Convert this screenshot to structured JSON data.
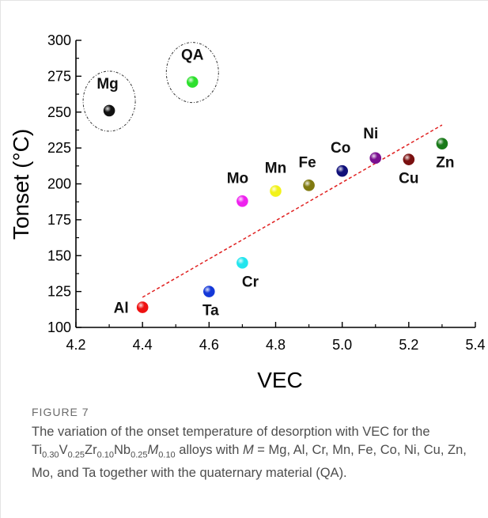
{
  "chart_data": {
    "type": "scatter",
    "xlabel": "VEC",
    "ylabel": "Tonset (°C)",
    "xlim": [
      4.2,
      5.4
    ],
    "ylim": [
      100,
      300
    ],
    "xticks": [
      "4.2",
      "4.4",
      "4.6",
      "4.8",
      "5.0",
      "5.2",
      "5.4"
    ],
    "yticks": [
      "100",
      "125",
      "150",
      "175",
      "200",
      "225",
      "250",
      "275",
      "300"
    ],
    "grid": false,
    "points": [
      {
        "label": "Mg",
        "x": 4.3,
        "y": 251,
        "color": "#111111",
        "circled": true
      },
      {
        "label": "QA",
        "x": 4.55,
        "y": 271,
        "color": "#2de02d",
        "circled": true
      },
      {
        "label": "Al",
        "x": 4.4,
        "y": 114,
        "color": "#ee1111"
      },
      {
        "label": "Ta",
        "x": 4.6,
        "y": 125,
        "color": "#1438d8"
      },
      {
        "label": "Cr",
        "x": 4.7,
        "y": 145,
        "color": "#22e5ee"
      },
      {
        "label": "Mo",
        "x": 4.7,
        "y": 188,
        "color": "#ee22ee"
      },
      {
        "label": "Mn",
        "x": 4.8,
        "y": 195,
        "color": "#f2f21a"
      },
      {
        "label": "Fe",
        "x": 4.9,
        "y": 199,
        "color": "#807a10"
      },
      {
        "label": "Co",
        "x": 5.0,
        "y": 209,
        "color": "#10107a"
      },
      {
        "label": "Ni",
        "x": 5.1,
        "y": 218,
        "color": "#7a1090"
      },
      {
        "label": "Cu",
        "x": 5.2,
        "y": 217,
        "color": "#7a1010"
      },
      {
        "label": "Zn",
        "x": 5.3,
        "y": 228,
        "color": "#1a7a1a"
      }
    ],
    "trend_line": {
      "x": [
        4.4,
        5.3
      ],
      "y": [
        121,
        241
      ],
      "color": "#e02020",
      "style": "dashed"
    }
  },
  "caption": {
    "figure_label": "FIGURE 7",
    "text_before": "The variation of the onset temperature of desorption with VEC for the ",
    "alloy": [
      [
        "Ti",
        "0.30"
      ],
      [
        "V",
        "0.25"
      ],
      [
        "Zr",
        "0.10"
      ],
      [
        "Nb",
        "0.25"
      ],
      [
        "M",
        "0.10"
      ]
    ],
    "text_middle": " alloys with ",
    "m_symbol": "M",
    "text_after": " = Mg, Al, Cr, Mn, Fe, Co, Ni, Cu, Zn, Mo, and Ta together with the quaternary material (QA)."
  }
}
